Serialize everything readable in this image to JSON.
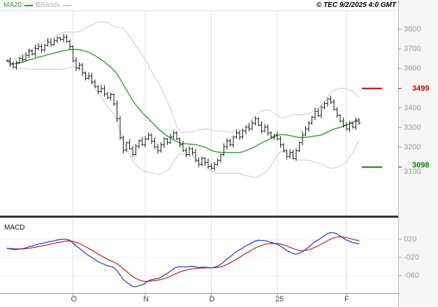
{
  "header": {
    "ma_label": "MA20",
    "bbands_label": "BBands",
    "copyright": "© TEC 9/2/2025 4:0 GMT"
  },
  "panel_labels": {
    "macd": "MACD"
  },
  "chart_data": {
    "type": "ohlc",
    "title": "",
    "xlabel": "",
    "ylabel": "",
    "colors": {
      "bars": "#1a1a1a",
      "ma20": "#2ca02c",
      "bbands": "#c8c8c8",
      "macd": "#2233bb",
      "signal": "#bb2222",
      "resistance": "#cc0000",
      "support": "#008800"
    },
    "price_panel": {
      "ylim": [
        2850,
        3895
      ],
      "yticks": [
        3800,
        3700,
        3600,
        3400,
        3300,
        3200,
        3100
      ],
      "closes": [
        3640,
        3622,
        3608,
        3630,
        3652,
        3645,
        3668,
        3690,
        3675,
        3702,
        3712,
        3695,
        3718,
        3735,
        3722,
        3742,
        3756,
        3748,
        3760,
        3738,
        3712,
        3640,
        3602,
        3618,
        3578,
        3550,
        3562,
        3532,
        3508,
        3482,
        3498,
        3470,
        3452,
        3468,
        3420,
        3345,
        3248,
        3185,
        3222,
        3192,
        3162,
        3205,
        3232,
        3212,
        3242,
        3262,
        3230,
        3200,
        3182,
        3212,
        3242,
        3222,
        3252,
        3272,
        3242,
        3212,
        3182,
        3162,
        3192,
        3172,
        3132,
        3112,
        3142,
        3122,
        3102,
        3092,
        3112,
        3132,
        3162,
        3202,
        3232,
        3212,
        3252,
        3272,
        3252,
        3282,
        3302,
        3292,
        3322,
        3345,
        3312,
        3282,
        3302,
        3272,
        3252,
        3262,
        3242,
        3212,
        3182,
        3152,
        3172,
        3142,
        3182,
        3222,
        3262,
        3292,
        3322,
        3352,
        3382,
        3362,
        3402,
        3422,
        3445,
        3430,
        3392,
        3362,
        3332,
        3312,
        3292,
        3322,
        3302,
        3332,
        3322
      ],
      "series": [
        {
          "name": "Price",
          "style": "hlc-bars"
        },
        {
          "name": "MA20",
          "style": "line"
        },
        {
          "name": "BBands",
          "style": "band-lines"
        }
      ],
      "levels": [
        {
          "name": "resistance",
          "label": "3499",
          "value": 3499,
          "color": "#cc0000"
        },
        {
          "name": "support",
          "label": "3098",
          "value": 3098,
          "color": "#008800"
        }
      ]
    },
    "macd_panel": {
      "ylim": [
        -98,
        58
      ],
      "yticks": [
        {
          "label": "020",
          "value": 20
        },
        {
          "label": "-020",
          "value": -20
        },
        {
          "label": "-060",
          "value": -60
        }
      ],
      "series": [
        {
          "name": "MACD"
        },
        {
          "name": "Signal"
        }
      ]
    },
    "x_axis": {
      "labels": [
        {
          "label": "O",
          "index": 21
        },
        {
          "label": "N",
          "index": 44
        },
        {
          "label": "D",
          "index": 65
        },
        {
          "label": "25",
          "index": 86
        },
        {
          "label": "F",
          "index": 108
        }
      ]
    },
    "legend_position": "top-left",
    "grid": "vertical-month-lines"
  }
}
